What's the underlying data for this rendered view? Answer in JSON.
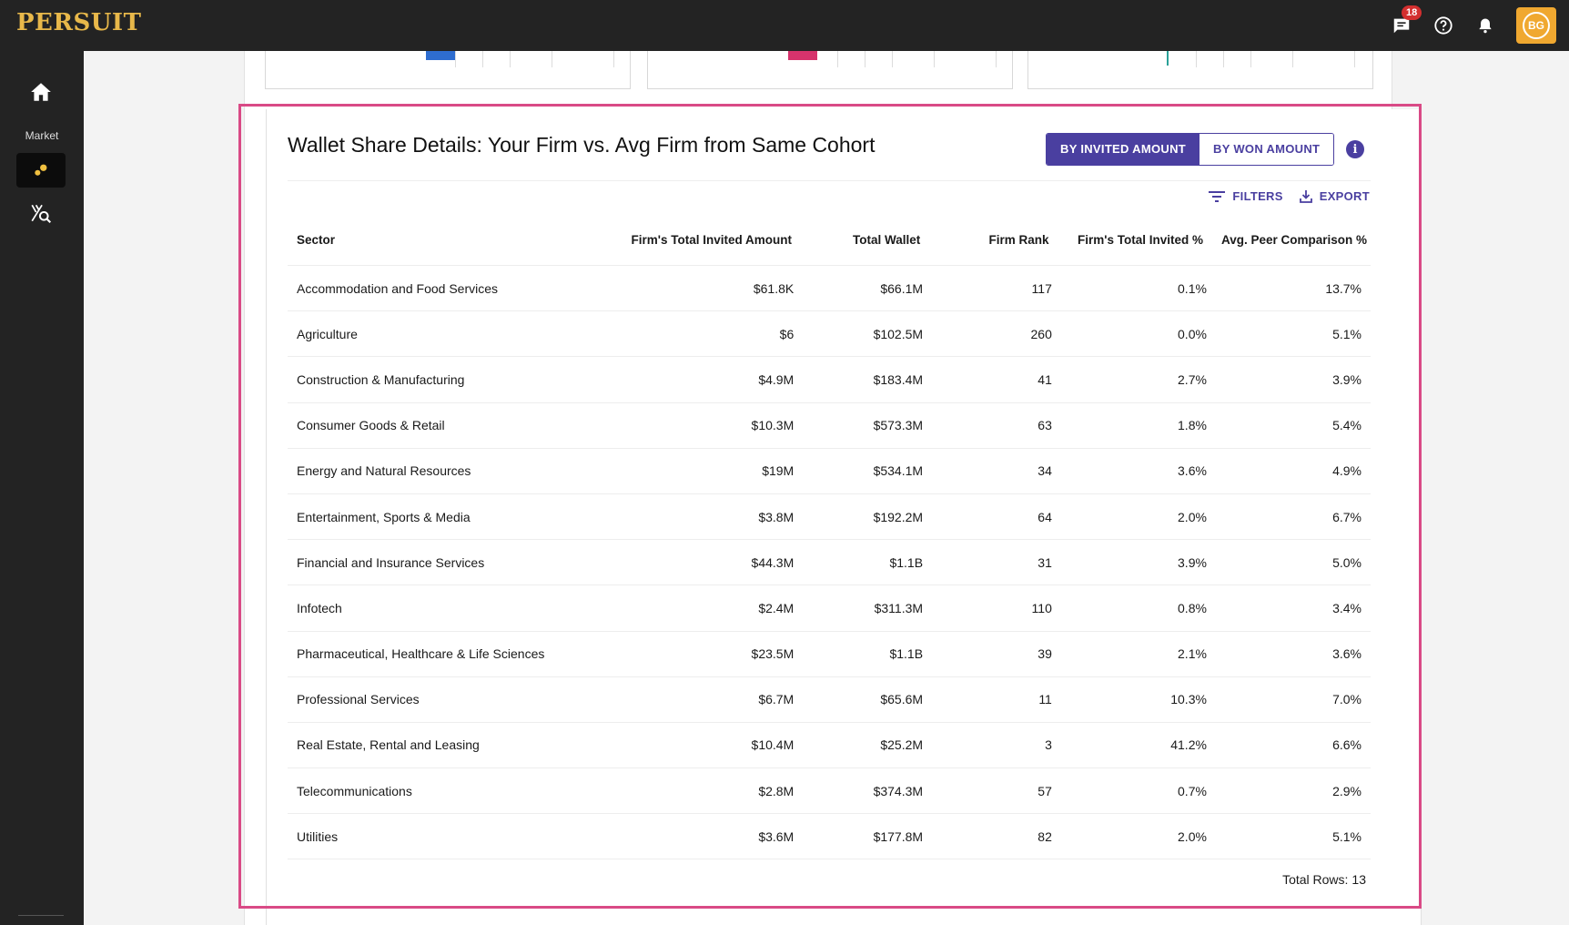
{
  "app": {
    "logo_text": "PERSUIT",
    "message_badge_count": "18",
    "avatar_initials": "BG",
    "accent_color": "#4a3fa0",
    "logo_color": "#e8b84a",
    "highlight_color": "#d94a86"
  },
  "sidebar": {
    "home_icon": "home-icon",
    "section_label": "Market",
    "active_icon": "market-insights-icon",
    "search_icon": "market-search-icon"
  },
  "card": {
    "title": "Wallet Share Details: Your Firm vs. Avg Firm from Same Cohort",
    "toggle": {
      "invited_label": "BY INVITED AMOUNT",
      "won_label": "BY WON AMOUNT",
      "selected": "invited"
    },
    "filters_label": "FILTERS",
    "export_label": "EXPORT",
    "total_rows_label": "Total Rows:",
    "total_rows_value": "13"
  },
  "table": {
    "columns": [
      "Sector",
      "Firm's Total Invited Amount",
      "Total Wallet",
      "Firm Rank",
      "Firm's Total Invited %",
      "Avg. Peer Comparison %"
    ],
    "rows": [
      [
        "Accommodation and Food Services",
        "$61.8K",
        "$66.1M",
        "117",
        "0.1%",
        "13.7%"
      ],
      [
        "Agriculture",
        "$6",
        "$102.5M",
        "260",
        "0.0%",
        "5.1%"
      ],
      [
        "Construction & Manufacturing",
        "$4.9M",
        "$183.4M",
        "41",
        "2.7%",
        "3.9%"
      ],
      [
        "Consumer Goods & Retail",
        "$10.3M",
        "$573.3M",
        "63",
        "1.8%",
        "5.4%"
      ],
      [
        "Energy and Natural Resources",
        "$19M",
        "$534.1M",
        "34",
        "3.6%",
        "4.9%"
      ],
      [
        "Entertainment, Sports & Media",
        "$3.8M",
        "$192.2M",
        "64",
        "2.0%",
        "6.7%"
      ],
      [
        "Financial and Insurance Services",
        "$44.3M",
        "$1.1B",
        "31",
        "3.9%",
        "5.0%"
      ],
      [
        "Infotech",
        "$2.4M",
        "$311.3M",
        "110",
        "0.8%",
        "3.4%"
      ],
      [
        "Pharmaceutical, Healthcare & Life Sciences",
        "$23.5M",
        "$1.1B",
        "39",
        "2.1%",
        "3.6%"
      ],
      [
        "Professional Services",
        "$6.7M",
        "$65.6M",
        "11",
        "10.3%",
        "7.0%"
      ],
      [
        "Real Estate, Rental and Leasing",
        "$10.4M",
        "$25.2M",
        "3",
        "41.2%",
        "6.6%"
      ],
      [
        "Telecommunications",
        "$2.8M",
        "$374.3M",
        "57",
        "0.7%",
        "2.9%"
      ],
      [
        "Utilities",
        "$3.6M",
        "$177.8M",
        "82",
        "2.0%",
        "5.1%"
      ]
    ]
  },
  "mini_charts": [
    {
      "bar_color": "#2e6dd0"
    },
    {
      "bar_color": "#d6336c"
    },
    {
      "bar_color": "#2aa198"
    }
  ]
}
